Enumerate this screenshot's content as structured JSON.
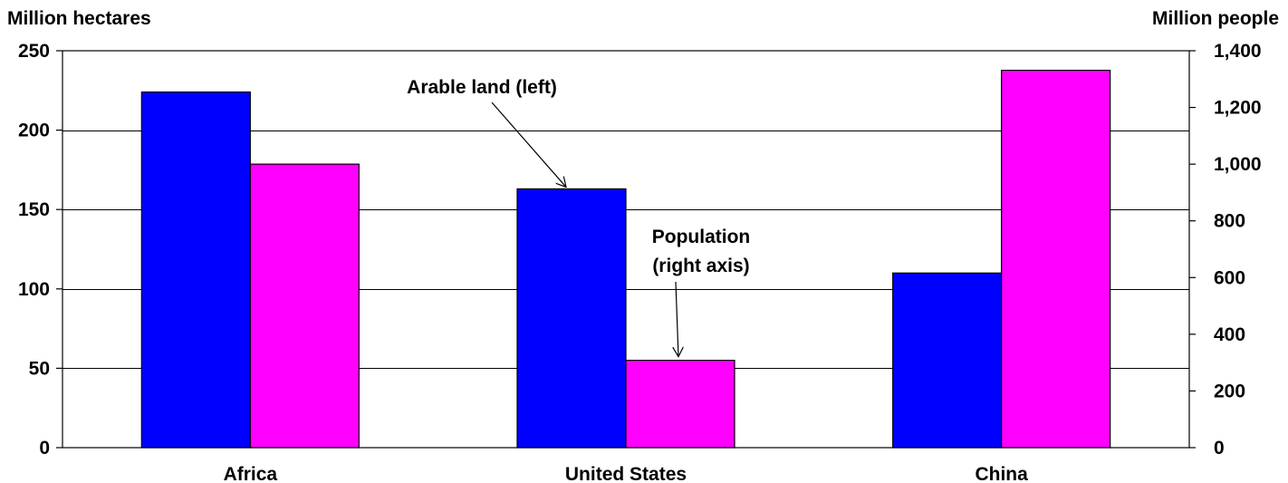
{
  "chart_data": {
    "type": "bar",
    "categories": [
      "Africa",
      "United States",
      "China"
    ],
    "series": [
      {
        "name": "Arable land (left)",
        "axis": "left",
        "color": "#0000ff",
        "values": [
          224,
          163,
          110
        ]
      },
      {
        "name": "Population (right axis)",
        "axis": "right",
        "color": "#ff00ff",
        "values": [
          1000,
          308,
          1331
        ]
      }
    ],
    "ylabel_left": "Million hectares",
    "ylabel_right": "Million people",
    "ylim_left": [
      0,
      250
    ],
    "ylim_right": [
      0,
      1400
    ],
    "yticks_left": [
      "0",
      "50",
      "100",
      "150",
      "200",
      "250"
    ],
    "yticks_right": [
      "0",
      "200",
      "400",
      "600",
      "800",
      "1,000",
      "1,200",
      "1,400"
    ],
    "grid": true,
    "annotations": [
      {
        "lines": [
          "Arable land (left)"
        ],
        "points_to": "United States - Arable land"
      },
      {
        "lines": [
          "Population",
          "(right axis)"
        ],
        "points_to": "United States - Population"
      }
    ]
  }
}
